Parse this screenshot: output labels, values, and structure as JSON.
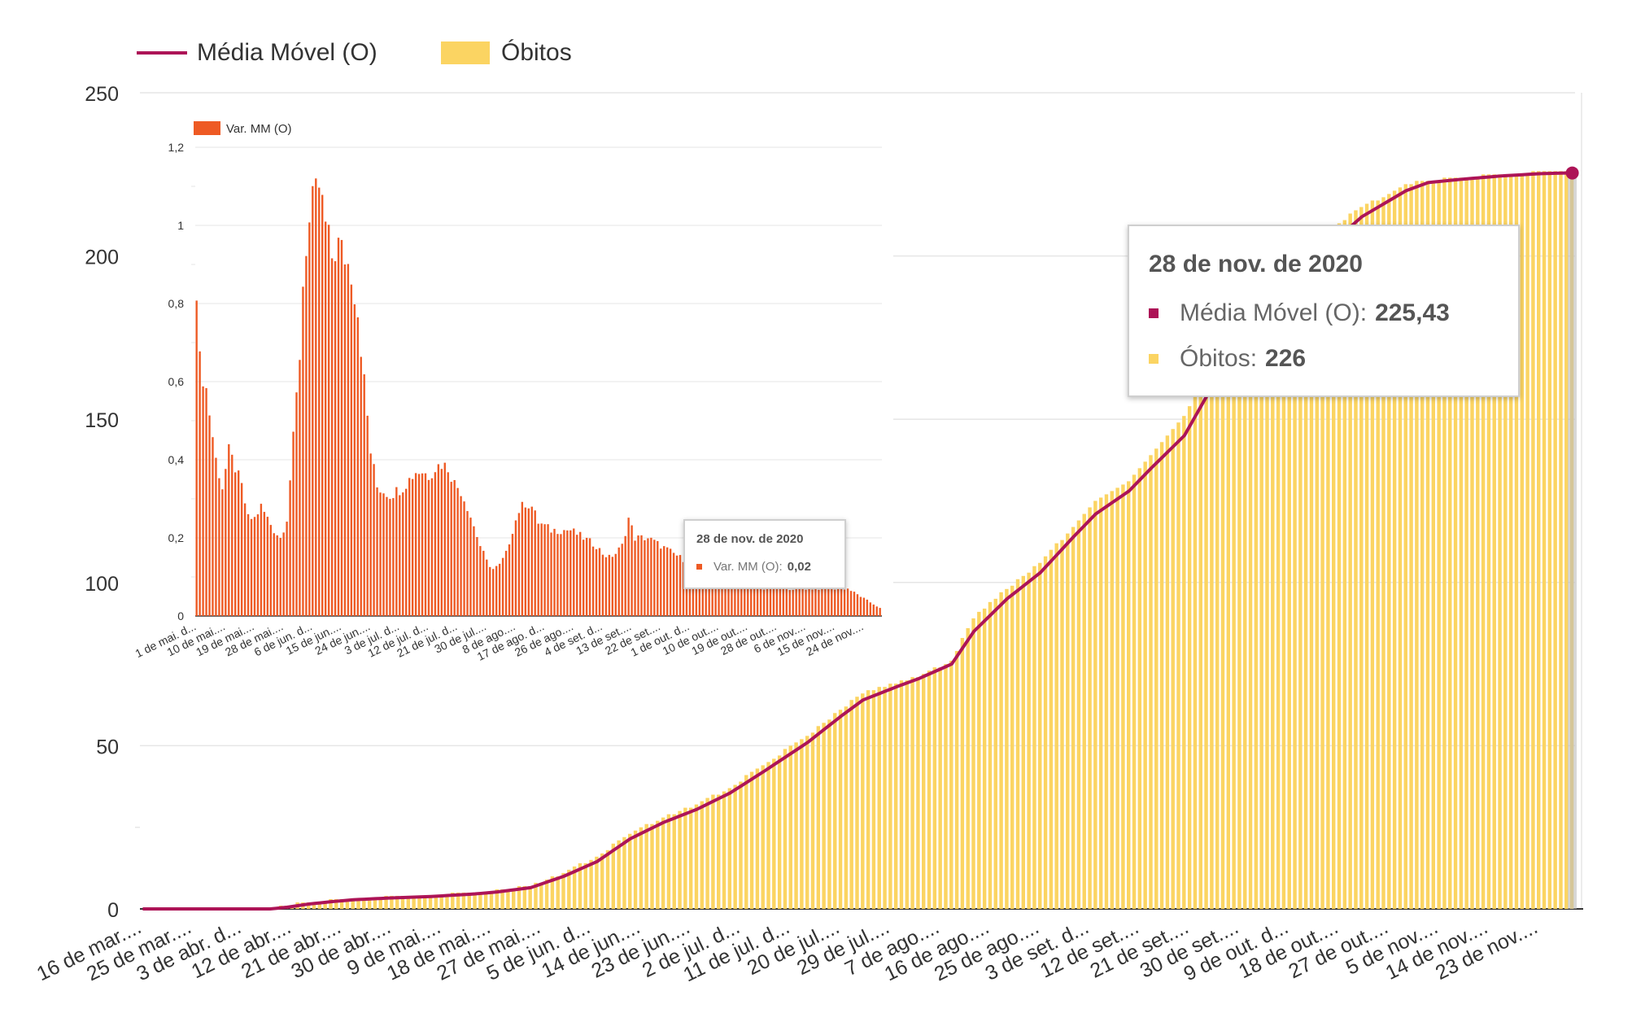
{
  "colors": {
    "media_movel": "#AD1457",
    "obitos": "#FBD462",
    "var_mm": "#EE5A24",
    "grid": "#E6E6E6",
    "axis_text": "#333333"
  },
  "legend": {
    "media_movel_label": "Média Móvel (O)",
    "obitos_label": "Óbitos"
  },
  "tooltip": {
    "date": "28 de nov. de 2020",
    "media_movel_label": "Média Móvel (O):",
    "media_movel_value": "225,43",
    "obitos_label": "Óbitos:",
    "obitos_value": "226"
  },
  "inset_legend": {
    "label": "Var. MM (O)"
  },
  "inset_tooltip": {
    "date": "28 de nov. de 2020",
    "label": "Var. MM (O):",
    "value": "0,02"
  },
  "chart_data": [
    {
      "type": "bar",
      "title": "",
      "ylim": [
        0,
        250
      ],
      "yticks": [
        "0",
        "50",
        "100",
        "150",
        "200",
        "250"
      ],
      "xticklabels": [
        "16 de mar....",
        "25 de mar....",
        "3 de abr. d...",
        "12 de abr....",
        "21 de abr....",
        "30 de abr....",
        "9 de mai....",
        "18 de mai....",
        "27 de mai....",
        "5 de jun. d...",
        "14 de jun....",
        "23 de jun....",
        "2 de jul. d...",
        "11 de jul. d...",
        "20 de jul....",
        "29 de jul....",
        "7 de ago....",
        "16 de ago....",
        "25 de ago....",
        "3 de set. d...",
        "12 de set....",
        "21 de set....",
        "30 de set....",
        "9 de out. d...",
        "18 de out....",
        "27 de out....",
        "5 de nov....",
        "14 de nov....",
        "23 de nov...."
      ],
      "grid": true,
      "legend_position": "top-left",
      "series": [
        {
          "name": "Óbitos",
          "type": "bar",
          "x_anchors": [
            0,
            23,
            26,
            30,
            34,
            38,
            44,
            52,
            60,
            64,
            70,
            76,
            82,
            88,
            94,
            100,
            106,
            112,
            120,
            126,
            130,
            136,
            140,
            146,
            150,
            156,
            162,
            168,
            172,
            178,
            182,
            188,
            194,
            200,
            206,
            212,
            216,
            220,
            224,
            228,
            232,
            238,
            245,
            250,
            252,
            256,
            258
          ],
          "y_anchors": [
            0,
            0,
            1,
            2,
            2.5,
            3,
            3.5,
            4,
            5,
            5.5,
            7,
            11,
            16,
            23,
            28,
            32,
            37,
            44,
            53,
            61,
            66,
            69,
            71,
            76,
            89,
            98,
            106,
            117,
            125,
            131,
            139,
            151,
            170,
            183,
            193,
            201,
            210,
            215,
            218,
            222,
            223,
            224,
            225,
            225,
            226,
            226,
            226
          ]
        },
        {
          "name": "Média Móvel (O)",
          "type": "line",
          "x_anchors": [
            0,
            23,
            26,
            30,
            34,
            38,
            44,
            52,
            60,
            64,
            70,
            76,
            82,
            88,
            94,
            100,
            106,
            112,
            120,
            126,
            130,
            136,
            140,
            146,
            150,
            156,
            162,
            168,
            172,
            178,
            182,
            188,
            194,
            200,
            206,
            212,
            216,
            220,
            224,
            228,
            232,
            238,
            245,
            250,
            252,
            256,
            258
          ],
          "y_anchors": [
            0,
            0,
            0.5,
            1.5,
            2.2,
            2.8,
            3.3,
            3.8,
            4.6,
            5.2,
            6.5,
            10,
            14.5,
            21.5,
            26.5,
            30.5,
            35.5,
            42,
            51,
            59,
            64,
            68,
            70.5,
            75,
            85,
            95,
            103,
            114,
            121,
            128,
            135,
            145,
            163,
            180,
            190,
            198,
            206,
            212,
            216,
            220,
            222.5,
            223.5,
            224.5,
            225,
            225.2,
            225.4,
            225.43
          ]
        }
      ]
    },
    {
      "type": "bar",
      "title": "",
      "ylim": [
        0,
        1.2
      ],
      "yticks": [
        "0",
        "0,2",
        "0,4",
        "0,6",
        "0,8",
        "1",
        "1,2"
      ],
      "xticklabels": [
        "1 de mai. d...",
        "10 de mai....",
        "19 de mai....",
        "28 de mai....",
        "6 de jun. d...",
        "15 de jun....",
        "24 de jun....",
        "3 de jul. d...",
        "12 de jul. d...",
        "21 de jul. d...",
        "30 de jul....",
        "8 de ago....",
        "17 de ago. d...",
        "26 de ago....",
        "4 de set. d...",
        "13 de set....",
        "22 de set....",
        "1 de out. d...",
        "10 de out....",
        "19 de out....",
        "28 de out....",
        "6 de nov....",
        "15 de nov....",
        "24 de nov...."
      ],
      "series": [
        {
          "name": "Var. MM (O)",
          "x_anchors": [
            0,
            1,
            3,
            6,
            8,
            10,
            12,
            14,
            16,
            18,
            20,
            22,
            24,
            26,
            28,
            30,
            32,
            33,
            34,
            36,
            38,
            40,
            42,
            44,
            46,
            48,
            50,
            52,
            54,
            56,
            58,
            60,
            62,
            64,
            66,
            68,
            70,
            72,
            74,
            76,
            78,
            80,
            82,
            84,
            86,
            88,
            90,
            92,
            94,
            96,
            98,
            100,
            102,
            104,
            106,
            108,
            110,
            112,
            114,
            116,
            118,
            120,
            122,
            124,
            126,
            128,
            130,
            132,
            134,
            136,
            138,
            140,
            142,
            144,
            146,
            148,
            150,
            152,
            154,
            156,
            158,
            160,
            162,
            164,
            166,
            168,
            170,
            172,
            174,
            176,
            178,
            180,
            182,
            184,
            186,
            188,
            190,
            192,
            194,
            196,
            198,
            200,
            202,
            204,
            206,
            208,
            210,
            212
          ],
          "y_anchors": [
            0.85,
            0.65,
            0.58,
            0.4,
            0.33,
            0.42,
            0.38,
            0.33,
            0.25,
            0.25,
            0.28,
            0.25,
            0.22,
            0.2,
            0.25,
            0.45,
            0.67,
            0.85,
            0.95,
            1.05,
            1.1,
            1.0,
            0.92,
            0.95,
            0.92,
            0.88,
            0.78,
            0.6,
            0.42,
            0.33,
            0.32,
            0.31,
            0.32,
            0.33,
            0.35,
            0.37,
            0.37,
            0.36,
            0.38,
            0.39,
            0.38,
            0.34,
            0.32,
            0.28,
            0.23,
            0.18,
            0.14,
            0.12,
            0.13,
            0.16,
            0.22,
            0.27,
            0.29,
            0.28,
            0.24,
            0.23,
            0.22,
            0.22,
            0.22,
            0.22,
            0.21,
            0.2,
            0.19,
            0.18,
            0.16,
            0.15,
            0.16,
            0.18,
            0.25,
            0.2,
            0.2,
            0.2,
            0.19,
            0.18,
            0.17,
            0.16,
            0.15,
            0.14,
            0.13,
            0.12,
            0.11,
            0.1,
            0.1,
            0.09,
            0.08,
            0.08,
            0.08,
            0.07,
            0.07,
            0.07,
            0.07,
            0.07,
            0.07,
            0.07,
            0.07,
            0.07,
            0.07,
            0.07,
            0.07,
            0.07,
            0.07,
            0.07,
            0.07,
            0.06,
            0.05,
            0.04,
            0.03,
            0.02
          ]
        }
      ]
    }
  ]
}
